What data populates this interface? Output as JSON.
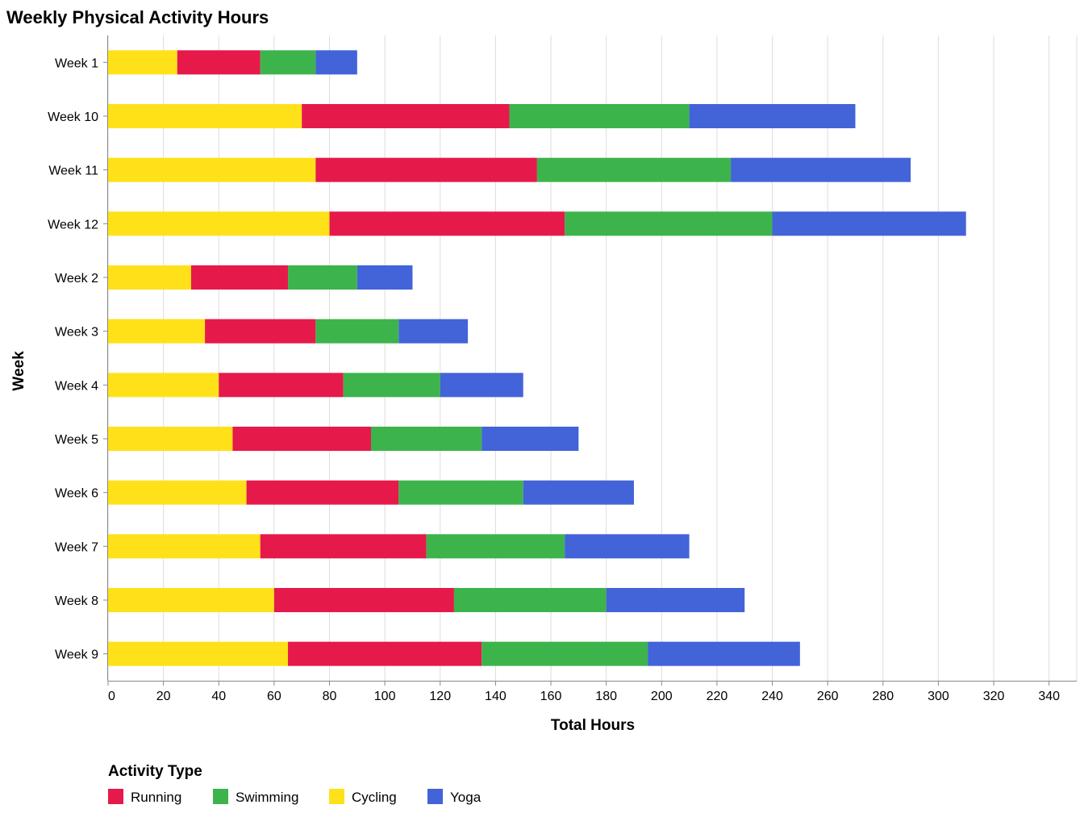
{
  "chart_data": {
    "type": "bar",
    "orientation": "horizontal",
    "stacked": true,
    "title": "Weekly Physical Activity Hours",
    "xlabel": "Total Hours",
    "ylabel": "Week",
    "xlim": [
      0,
      350
    ],
    "x_ticks": [
      0,
      20,
      40,
      60,
      80,
      100,
      120,
      140,
      160,
      180,
      200,
      220,
      240,
      260,
      280,
      300,
      320,
      340
    ],
    "grid": true,
    "categories": [
      "Week 1",
      "Week 10",
      "Week 11",
      "Week 12",
      "Week 2",
      "Week 3",
      "Week 4",
      "Week 5",
      "Week 6",
      "Week 7",
      "Week 8",
      "Week 9"
    ],
    "stack_order": [
      "Cycling",
      "Running",
      "Swimming",
      "Yoga"
    ],
    "series": [
      {
        "name": "Running",
        "color": "#e6194b",
        "values": [
          30,
          75,
          80,
          85,
          35,
          40,
          45,
          50,
          55,
          60,
          65,
          70
        ]
      },
      {
        "name": "Swimming",
        "color": "#3cb44b",
        "values": [
          20,
          65,
          70,
          75,
          25,
          30,
          35,
          40,
          45,
          50,
          55,
          60
        ]
      },
      {
        "name": "Cycling",
        "color": "#ffe119",
        "values": [
          25,
          70,
          75,
          80,
          30,
          35,
          40,
          45,
          50,
          55,
          60,
          65
        ]
      },
      {
        "name": "Yoga",
        "color": "#4363d8",
        "values": [
          15,
          60,
          65,
          70,
          20,
          25,
          30,
          35,
          40,
          45,
          50,
          55
        ]
      }
    ],
    "legend": {
      "title": "Activity Type",
      "position": "bottom-left",
      "order": [
        "Running",
        "Swimming",
        "Cycling",
        "Yoga"
      ]
    }
  }
}
